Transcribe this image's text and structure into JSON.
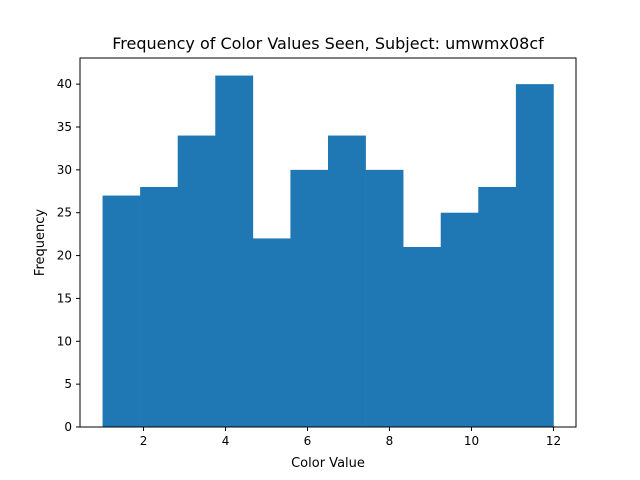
{
  "chart_data": {
    "type": "bar",
    "title": "Frequency of Color Values Seen, Subject: umwmx08cf",
    "xlabel": "Color Value",
    "ylabel": "Frequency",
    "xlim": [
      0.45,
      12.55
    ],
    "ylim": [
      0,
      43.05
    ],
    "bin_edges": [
      1,
      1.9167,
      2.8333,
      3.75,
      4.6667,
      5.5833,
      6.5,
      7.4167,
      8.3333,
      9.25,
      10.1667,
      11.0833,
      12
    ],
    "values": [
      27,
      28,
      34,
      41,
      22,
      30,
      34,
      30,
      21,
      25,
      28,
      40
    ],
    "xticks": [
      2,
      4,
      6,
      8,
      10,
      12
    ],
    "yticks": [
      0,
      5,
      10,
      15,
      20,
      25,
      30,
      35,
      40
    ],
    "bar_color": "#1f77b4",
    "grid": false
  }
}
